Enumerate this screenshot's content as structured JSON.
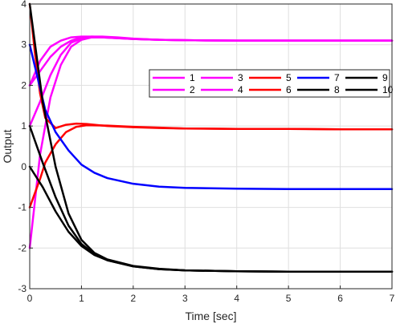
{
  "chart_data": {
    "type": "line",
    "title": "",
    "xlabel": "Time [sec]",
    "ylabel": "Output",
    "xlim": [
      0,
      7
    ],
    "ylim": [
      -3,
      4
    ],
    "xticks": [
      0,
      1,
      2,
      3,
      4,
      5,
      6,
      7
    ],
    "yticks": [
      -3,
      -2,
      -1,
      0,
      1,
      2,
      3,
      4
    ],
    "grid": true,
    "legend": {
      "placement": "top-right",
      "columns": 5
    },
    "series": [
      {
        "name": "1",
        "color": "#ff00ff",
        "x": [
          0,
          0.2,
          0.4,
          0.6,
          0.8,
          1.0,
          1.2,
          1.4,
          1.7,
          2.0,
          2.5,
          3,
          4,
          5,
          6,
          7
        ],
        "y": [
          2.0,
          2.35,
          2.7,
          2.95,
          3.1,
          3.18,
          3.2,
          3.2,
          3.18,
          3.15,
          3.12,
          3.11,
          3.1,
          3.1,
          3.1,
          3.1
        ]
      },
      {
        "name": "2",
        "color": "#ff00ff",
        "x": [
          0,
          0.2,
          0.4,
          0.6,
          0.8,
          1.0,
          1.2,
          1.4,
          1.7,
          2.0,
          2.5,
          3,
          4,
          5,
          6,
          7
        ],
        "y": [
          -2.0,
          0.3,
          1.7,
          2.5,
          2.95,
          3.12,
          3.18,
          3.18,
          3.16,
          3.14,
          3.12,
          3.11,
          3.1,
          3.1,
          3.1,
          3.1
        ]
      },
      {
        "name": "3",
        "color": "#ff00ff",
        "x": [
          0,
          0.2,
          0.4,
          0.6,
          0.8,
          1.0,
          1.2,
          1.4,
          1.7,
          2.0,
          2.5,
          3,
          4,
          5,
          6,
          7
        ],
        "y": [
          2.0,
          2.6,
          2.95,
          3.1,
          3.18,
          3.2,
          3.2,
          3.19,
          3.17,
          3.14,
          3.12,
          3.11,
          3.1,
          3.1,
          3.1,
          3.1
        ]
      },
      {
        "name": "4",
        "color": "#ff00ff",
        "x": [
          0,
          0.2,
          0.4,
          0.6,
          0.8,
          1.0,
          1.2,
          1.4,
          1.7,
          2.0,
          2.5,
          3,
          4,
          5,
          6,
          7
        ],
        "y": [
          1.0,
          1.6,
          2.25,
          2.75,
          3.05,
          3.15,
          3.18,
          3.18,
          3.16,
          3.14,
          3.12,
          3.11,
          3.1,
          3.1,
          3.1,
          3.1
        ]
      },
      {
        "name": "5",
        "color": "#ff0000",
        "x": [
          0,
          0.1,
          0.2,
          0.3,
          0.5,
          0.7,
          0.9,
          1.1,
          1.5,
          2.0,
          2.5,
          3,
          4,
          5,
          6,
          7
        ],
        "y": [
          4.0,
          2.8,
          1.8,
          1.2,
          0.95,
          1.03,
          1.06,
          1.05,
          1.0,
          0.97,
          0.95,
          0.94,
          0.93,
          0.93,
          0.92,
          0.92
        ]
      },
      {
        "name": "6",
        "color": "#ff0000",
        "x": [
          0,
          0.1,
          0.2,
          0.3,
          0.5,
          0.7,
          0.9,
          1.1,
          1.5,
          2.0,
          2.5,
          3,
          4,
          5,
          6,
          7
        ],
        "y": [
          -1.0,
          -0.65,
          -0.3,
          0.1,
          0.55,
          0.85,
          0.98,
          1.02,
          1.01,
          0.98,
          0.96,
          0.94,
          0.93,
          0.93,
          0.92,
          0.92
        ]
      },
      {
        "name": "7",
        "color": "#0000ff",
        "x": [
          0,
          0.15,
          0.3,
          0.5,
          0.75,
          1.0,
          1.25,
          1.5,
          2.0,
          2.5,
          3,
          4,
          5,
          6,
          7
        ],
        "y": [
          3.0,
          2.2,
          1.4,
          0.85,
          0.4,
          0.05,
          -0.15,
          -0.28,
          -0.42,
          -0.49,
          -0.52,
          -0.54,
          -0.55,
          -0.55,
          -0.55
        ]
      },
      {
        "name": "8",
        "color": "#000000",
        "x": [
          0,
          0.25,
          0.5,
          0.75,
          1.0,
          1.25,
          1.5,
          2.0,
          2.5,
          3,
          4,
          5,
          6,
          7
        ],
        "y": [
          1.0,
          0.1,
          -0.75,
          -1.45,
          -1.9,
          -2.15,
          -2.3,
          -2.45,
          -2.52,
          -2.55,
          -2.57,
          -2.58,
          -2.58,
          -2.58
        ]
      },
      {
        "name": "9",
        "color": "#000000",
        "x": [
          0,
          0.25,
          0.5,
          0.75,
          1.0,
          1.25,
          1.5,
          2.0,
          2.5,
          3,
          4,
          5,
          6,
          7
        ],
        "y": [
          4.0,
          1.6,
          0.0,
          -1.15,
          -1.8,
          -2.12,
          -2.28,
          -2.44,
          -2.51,
          -2.55,
          -2.57,
          -2.58,
          -2.58,
          -2.58
        ]
      },
      {
        "name": "10",
        "color": "#000000",
        "x": [
          0,
          0.25,
          0.5,
          0.75,
          1.0,
          1.25,
          1.5,
          2.0,
          2.5,
          3,
          4,
          5,
          6,
          7
        ],
        "y": [
          0.0,
          -0.5,
          -1.1,
          -1.6,
          -1.95,
          -2.17,
          -2.3,
          -2.45,
          -2.52,
          -2.55,
          -2.57,
          -2.58,
          -2.58,
          -2.58
        ]
      }
    ]
  }
}
